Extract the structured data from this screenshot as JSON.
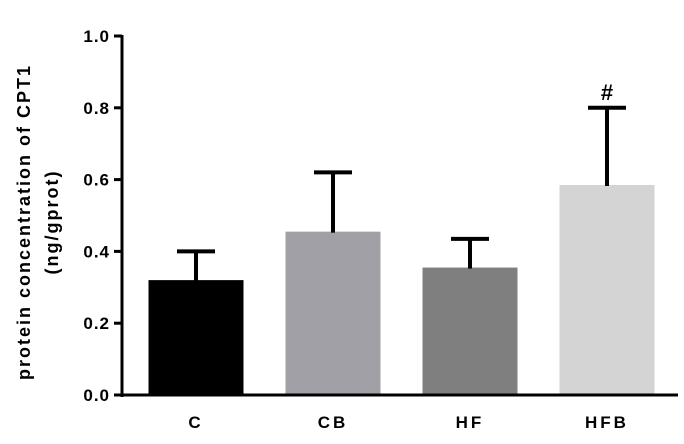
{
  "chart_data": {
    "type": "bar",
    "categories": [
      "C",
      "CB",
      "HF",
      "HFB"
    ],
    "values": [
      0.32,
      0.455,
      0.355,
      0.585
    ],
    "errors": [
      0.08,
      0.165,
      0.08,
      0.215
    ],
    "colors": [
      "#000000",
      "#a0a0a6",
      "#7f7f7f",
      "#d4d4d4"
    ],
    "ylabel_line1": "protein concentration of CPT1",
    "ylabel_line2": "(ng/gprot)",
    "ylim": [
      0,
      1.0
    ],
    "yticks": [
      "0.0",
      "0.2",
      "0.4",
      "0.6",
      "0.8",
      "1.0"
    ],
    "annotations": [
      {
        "category": "HFB",
        "text": "#"
      }
    ],
    "grid": false
  }
}
